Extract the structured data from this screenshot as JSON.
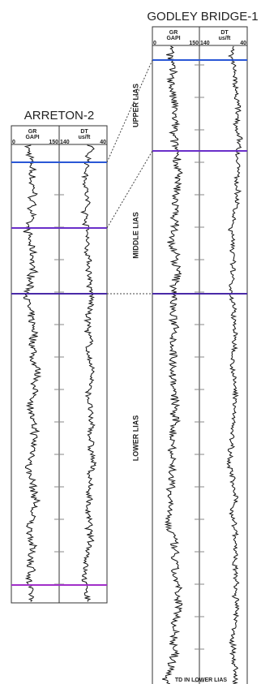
{
  "wells": [
    {
      "name": "ARRETON-2",
      "tracks": [
        {
          "curve": "GR",
          "unit": "GAPI",
          "scale_min": 0,
          "scale_max": 150
        },
        {
          "curve": "DT",
          "unit": "us/ft",
          "scale_min": 140,
          "scale_max": 40
        }
      ]
    },
    {
      "name": "GODLEY BRIDGE-1",
      "tracks": [
        {
          "curve": "GR",
          "unit": "GAPI",
          "scale_min": 0,
          "scale_max": 150
        },
        {
          "curve": "DT",
          "unit": "us/ft",
          "scale_min": 140,
          "scale_max": 40
        }
      ]
    }
  ],
  "zones": [
    "UPPER LIAS",
    "MIDDLE LIAS",
    "LOWER LIAS"
  ],
  "td_label": "TD IN LOWER LIAS"
}
